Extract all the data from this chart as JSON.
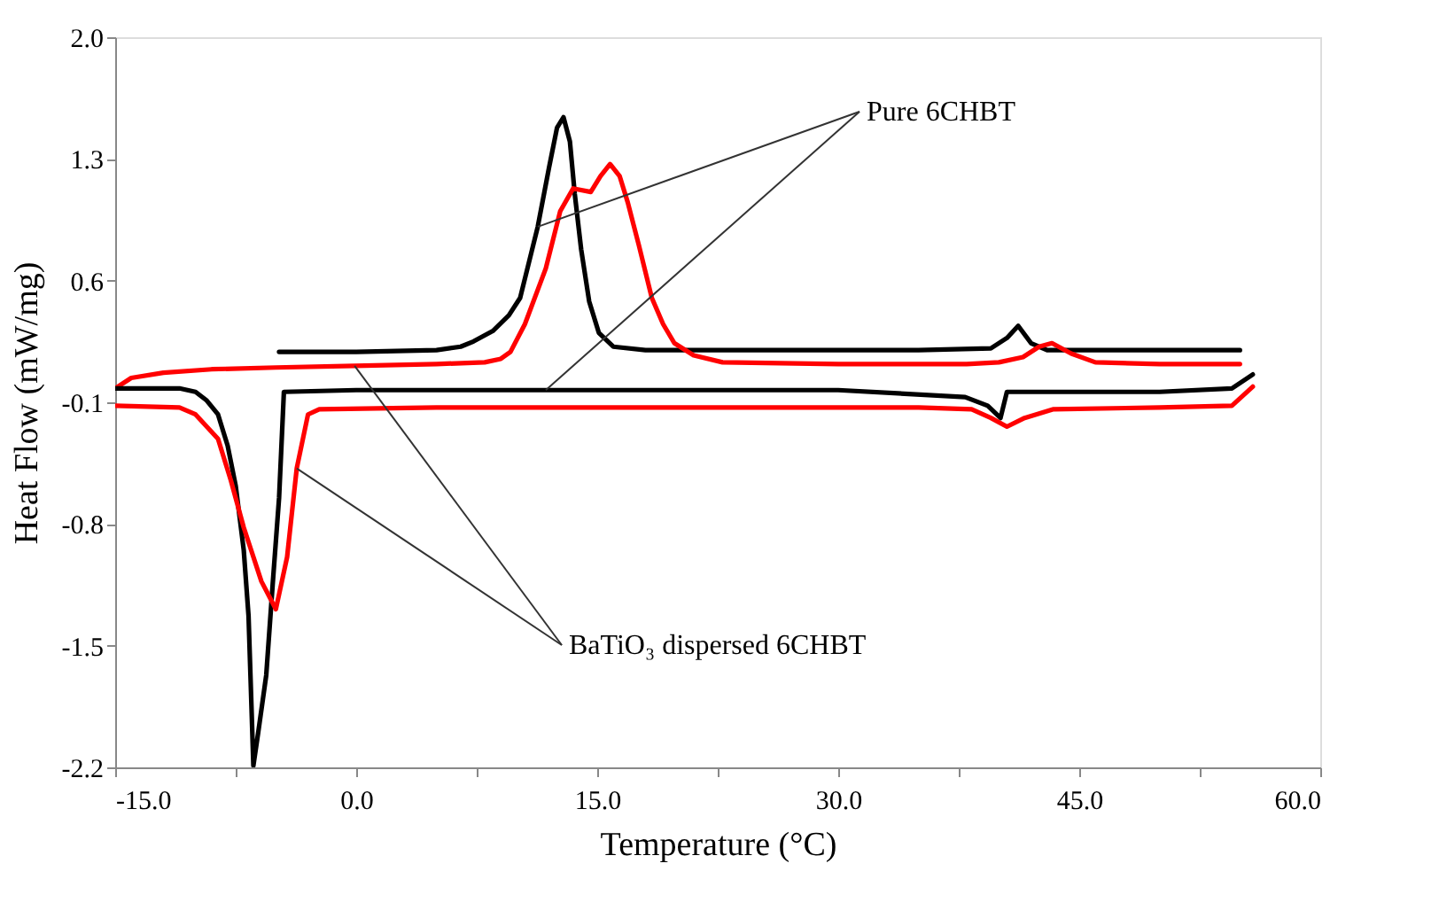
{
  "chart_data": {
    "type": "line",
    "xlabel": "Temperature (°C)",
    "ylabel": "Heat Flow (mW/mg)",
    "xlim": [
      -15,
      60
    ],
    "ylim": [
      -2.2,
      2.0
    ],
    "xticks": [
      {
        "value": -15,
        "label": "-15.0"
      },
      {
        "value": -7.5,
        "label": null
      },
      {
        "value": 0,
        "label": "0.0"
      },
      {
        "value": 7.5,
        "label": null
      },
      {
        "value": 15,
        "label": "15.0"
      },
      {
        "value": 22.5,
        "label": null
      },
      {
        "value": 30,
        "label": "30.0"
      },
      {
        "value": 37.5,
        "label": null
      },
      {
        "value": 45,
        "label": "45.0"
      },
      {
        "value": 52.5,
        "label": null
      },
      {
        "value": 60,
        "label": "60.0"
      }
    ],
    "yticks": [
      {
        "value": -2.2,
        "label": "-2.2"
      },
      {
        "value": -1.5,
        "label": "-1.5"
      },
      {
        "value": -0.8,
        "label": "-0.8"
      },
      {
        "value": -0.1,
        "label": "-0.1"
      },
      {
        "value": 0.6,
        "label": "0.6"
      },
      {
        "value": 1.3,
        "label": "1.3"
      },
      {
        "value": 2.0,
        "label": "2.0"
      }
    ],
    "grid": false,
    "marker": "none",
    "line_style": "solid",
    "annotations": [
      {
        "text": "Pure 6CHBT",
        "x": 11.3,
        "y": 0.91
      },
      {
        "text": "BaTiO₃ dispersed 6CHBT",
        "x": -0.1,
        "y": 0.11
      }
    ],
    "series": [
      {
        "color": "#000000",
        "x": [
          -4.8,
          0,
          5,
          6.5,
          7.3,
          8.5,
          9.5,
          10.2,
          11.3,
          12.0,
          12.5,
          12.9,
          13.3,
          13.6,
          14.0,
          14.5,
          15.1,
          16,
          18,
          25,
          35,
          39.5,
          40.5,
          41.2,
          42,
          43,
          50,
          55
        ],
        "values": [
          0.19,
          0.19,
          0.2,
          0.22,
          0.25,
          0.31,
          0.4,
          0.5,
          0.91,
          1.25,
          1.48,
          1.54,
          1.4,
          1.1,
          0.78,
          0.48,
          0.3,
          0.22,
          0.2,
          0.2,
          0.2,
          0.21,
          0.27,
          0.34,
          0.24,
          0.2,
          0.2,
          0.2
        ]
      },
      {
        "color": "#ff0000",
        "x": [
          -15,
          -14,
          -12,
          -9,
          -5,
          -0.1,
          5,
          8,
          9,
          9.6,
          10.5,
          11.8,
          12.7,
          13.5,
          14.6,
          15.2,
          15.8,
          16.4,
          16.9,
          17.6,
          18.4,
          19.1,
          19.8,
          21,
          22.8,
          30,
          38,
          40,
          41.5,
          42.5,
          43.3,
          44.5,
          46,
          50,
          55
        ],
        "values": [
          -0.02,
          0.04,
          0.07,
          0.09,
          0.1,
          0.11,
          0.12,
          0.13,
          0.15,
          0.19,
          0.35,
          0.67,
          1.0,
          1.13,
          1.11,
          1.2,
          1.27,
          1.2,
          1.05,
          0.8,
          0.5,
          0.35,
          0.24,
          0.17,
          0.13,
          0.12,
          0.12,
          0.13,
          0.16,
          0.22,
          0.24,
          0.18,
          0.13,
          0.12,
          0.12
        ]
      },
      {
        "color": "#000000",
        "x": [
          -15,
          -11,
          -10,
          -9.3,
          -8.6,
          -8,
          -7.5,
          -7,
          -6.7,
          -6.4,
          -6.1,
          -5.6,
          -5.2,
          -4.8,
          -4.5,
          0,
          11.8,
          20,
          30,
          37.9,
          39.3,
          40.1,
          40.5,
          45,
          50,
          54.5,
          55.8
        ],
        "values": [
          -0.02,
          -0.02,
          -0.04,
          -0.09,
          -0.17,
          -0.35,
          -0.58,
          -0.95,
          -1.33,
          -2.19,
          -2.0,
          -1.67,
          -1.15,
          -0.65,
          -0.04,
          -0.03,
          -0.03,
          -0.03,
          -0.03,
          -0.07,
          -0.12,
          -0.19,
          -0.04,
          -0.04,
          -0.04,
          -0.02,
          0.06
        ]
      },
      {
        "color": "#ff0000",
        "x": [
          -15,
          -11,
          -10,
          -8.6,
          -7.8,
          -7,
          -5.9,
          -5.0,
          -4.3,
          -3.7,
          -3.0,
          -2.3,
          5,
          20,
          35,
          38.3,
          39.5,
          40.5,
          41.6,
          43.4,
          50,
          54.5,
          55.8
        ],
        "values": [
          -0.12,
          -0.13,
          -0.17,
          -0.31,
          -0.55,
          -0.82,
          -1.13,
          -1.29,
          -0.99,
          -0.48,
          -0.17,
          -0.14,
          -0.13,
          -0.13,
          -0.13,
          -0.14,
          -0.19,
          -0.24,
          -0.19,
          -0.14,
          -0.13,
          -0.12,
          -0.01
        ]
      }
    ]
  }
}
